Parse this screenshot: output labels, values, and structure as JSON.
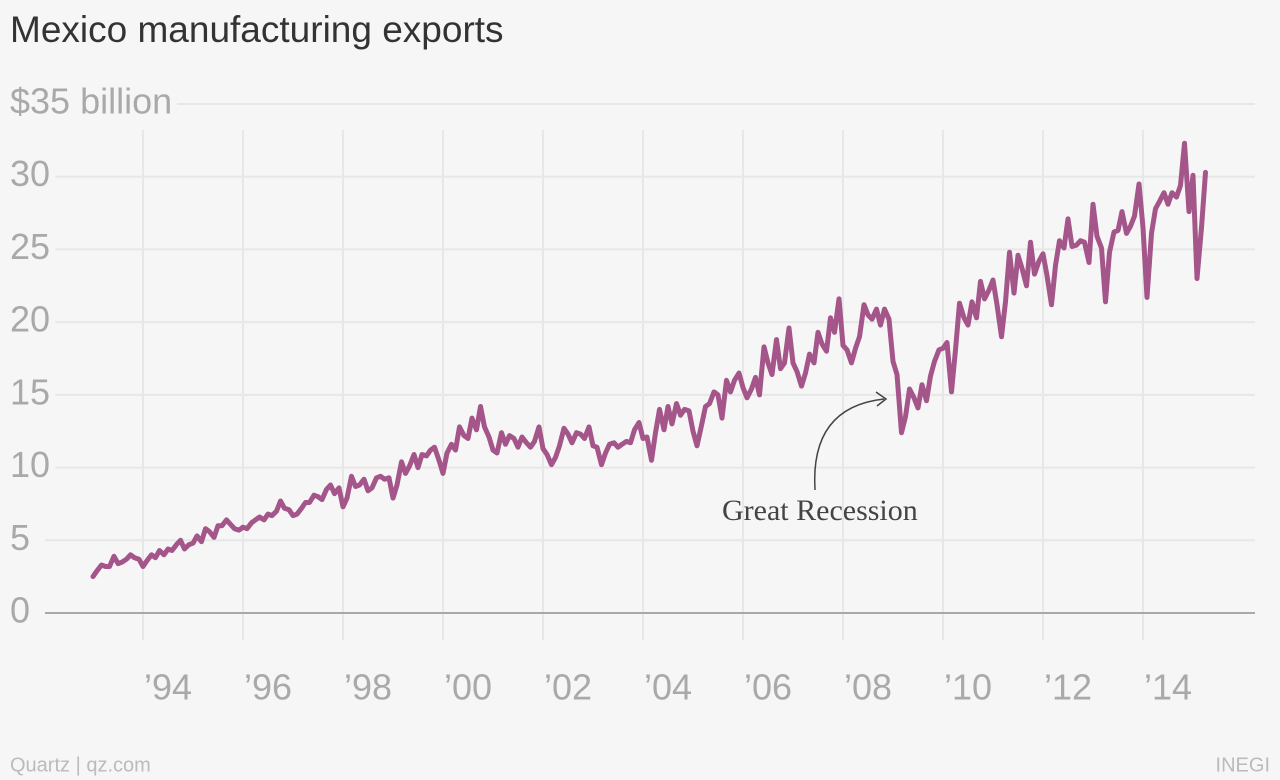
{
  "chart_data": {
    "type": "line",
    "title": "Mexico manufacturing exports",
    "annotation": "Great Recession",
    "source_left": "Quartz | qz.com",
    "source_right": "INEGI",
    "grid": true,
    "xlim": [
      1992.04,
      2016.24
    ],
    "ylim": [
      0,
      35
    ],
    "yticks": [
      0,
      5,
      10,
      15,
      20,
      25,
      30,
      {
        "value": 35,
        "label": "$35 billion"
      }
    ],
    "xticks": [
      {
        "value": 1994,
        "label": "’94"
      },
      {
        "value": 1996,
        "label": "’96"
      },
      {
        "value": 1998,
        "label": "’98"
      },
      {
        "value": 2000,
        "label": "’00"
      },
      {
        "value": 2002,
        "label": "’02"
      },
      {
        "value": 2004,
        "label": "’04"
      },
      {
        "value": 2006,
        "label": "’06"
      },
      {
        "value": 2008,
        "label": "’08"
      },
      {
        "value": 2010,
        "label": "’10"
      },
      {
        "value": 2012,
        "label": "’12"
      },
      {
        "value": 2014,
        "label": "’14"
      }
    ],
    "x": [
      1993,
      1993.08,
      1993.17,
      1993.25,
      1993.33,
      1993.42,
      1993.5,
      1993.58,
      1993.67,
      1993.75,
      1993.83,
      1993.92,
      1994,
      1994.08,
      1994.17,
      1994.25,
      1994.33,
      1994.42,
      1994.5,
      1994.58,
      1994.67,
      1994.75,
      1994.83,
      1994.92,
      1995,
      1995.08,
      1995.17,
      1995.25,
      1995.33,
      1995.42,
      1995.5,
      1995.58,
      1995.67,
      1995.75,
      1995.83,
      1995.92,
      1996,
      1996.08,
      1996.17,
      1996.25,
      1996.33,
      1996.42,
      1996.5,
      1996.58,
      1996.67,
      1996.75,
      1996.83,
      1996.92,
      1997,
      1997.08,
      1997.17,
      1997.25,
      1997.33,
      1997.42,
      1997.5,
      1997.58,
      1997.67,
      1997.75,
      1997.83,
      1997.92,
      1998,
      1998.08,
      1998.17,
      1998.25,
      1998.33,
      1998.42,
      1998.5,
      1998.58,
      1998.67,
      1998.75,
      1998.83,
      1998.92,
      1999,
      1999.08,
      1999.17,
      1999.25,
      1999.33,
      1999.42,
      1999.5,
      1999.58,
      1999.67,
      1999.75,
      1999.83,
      1999.92,
      2000,
      2000.08,
      2000.17,
      2000.25,
      2000.33,
      2000.42,
      2000.5,
      2000.58,
      2000.67,
      2000.75,
      2000.83,
      2000.92,
      2001,
      2001.08,
      2001.17,
      2001.25,
      2001.33,
      2001.42,
      2001.5,
      2001.58,
      2001.67,
      2001.75,
      2001.83,
      2001.92,
      2002,
      2002.08,
      2002.17,
      2002.25,
      2002.33,
      2002.42,
      2002.5,
      2002.58,
      2002.67,
      2002.75,
      2002.83,
      2002.92,
      2003,
      2003.08,
      2003.17,
      2003.25,
      2003.33,
      2003.42,
      2003.5,
      2003.58,
      2003.67,
      2003.75,
      2003.83,
      2003.92,
      2004,
      2004.08,
      2004.17,
      2004.25,
      2004.33,
      2004.42,
      2004.5,
      2004.58,
      2004.67,
      2004.75,
      2004.83,
      2004.92,
      2005,
      2005.08,
      2005.17,
      2005.25,
      2005.33,
      2005.42,
      2005.5,
      2005.58,
      2005.67,
      2005.75,
      2005.83,
      2005.92,
      2006,
      2006.08,
      2006.17,
      2006.25,
      2006.33,
      2006.42,
      2006.5,
      2006.58,
      2006.67,
      2006.75,
      2006.83,
      2006.92,
      2007,
      2007.08,
      2007.17,
      2007.25,
      2007.33,
      2007.42,
      2007.5,
      2007.58,
      2007.67,
      2007.75,
      2007.83,
      2007.92,
      2008,
      2008.08,
      2008.17,
      2008.25,
      2008.33,
      2008.42,
      2008.5,
      2008.58,
      2008.67,
      2008.75,
      2008.83,
      2008.92,
      2009,
      2009.08,
      2009.17,
      2009.25,
      2009.33,
      2009.42,
      2009.5,
      2009.58,
      2009.67,
      2009.75,
      2009.83,
      2009.92,
      2010,
      2010.08,
      2010.17,
      2010.25,
      2010.33,
      2010.42,
      2010.5,
      2010.58,
      2010.67,
      2010.75,
      2010.83,
      2010.92,
      2011,
      2011.08,
      2011.17,
      2011.25,
      2011.33,
      2011.42,
      2011.5,
      2011.58,
      2011.67,
      2011.75,
      2011.83,
      2011.92,
      2012,
      2012.08,
      2012.17,
      2012.25,
      2012.33,
      2012.42,
      2012.5,
      2012.58,
      2012.67,
      2012.75,
      2012.83,
      2012.92,
      2013,
      2013.08,
      2013.17,
      2013.25,
      2013.33,
      2013.42,
      2013.5,
      2013.58,
      2013.67,
      2013.75,
      2013.83,
      2013.92,
      2014,
      2014.08,
      2014.17,
      2014.25,
      2014.33,
      2014.42,
      2014.5,
      2014.58,
      2014.67,
      2014.75,
      2014.83,
      2014.92,
      2015,
      2015.08,
      2015.17,
      2015.25
    ],
    "series": [
      {
        "color": "#a4568a",
        "values": [
          2.5,
          2.9,
          3.3,
          3.2,
          3.2,
          3.9,
          3.4,
          3.5,
          3.7,
          4.0,
          3.8,
          3.7,
          3.2,
          3.6,
          4.0,
          3.8,
          4.3,
          4.0,
          4.4,
          4.3,
          4.7,
          5.0,
          4.4,
          4.7,
          4.8,
          5.3,
          4.9,
          5.8,
          5.6,
          5.2,
          6.0,
          6.0,
          6.4,
          6.1,
          5.8,
          5.7,
          5.9,
          5.8,
          6.2,
          6.4,
          6.6,
          6.4,
          6.8,
          6.7,
          7.0,
          7.7,
          7.2,
          7.1,
          6.7,
          6.8,
          7.2,
          7.6,
          7.6,
          8.1,
          8.0,
          7.8,
          8.5,
          8.8,
          8.2,
          8.6,
          7.3,
          7.9,
          9.4,
          8.7,
          8.8,
          9.2,
          8.4,
          8.6,
          9.3,
          9.4,
          9.2,
          9.3,
          7.9,
          8.8,
          10.4,
          9.6,
          10.1,
          10.9,
          10.0,
          10.9,
          10.8,
          11.2,
          11.4,
          10.5,
          9.6,
          11.0,
          11.6,
          11.2,
          12.8,
          12.2,
          12.0,
          13.4,
          12.6,
          14.2,
          12.8,
          12.1,
          11.2,
          11.0,
          12.4,
          11.6,
          12.2,
          12.0,
          11.4,
          12.1,
          11.7,
          11.4,
          11.8,
          12.8,
          11.3,
          10.9,
          10.2,
          10.7,
          11.5,
          12.7,
          12.3,
          11.7,
          12.4,
          12.3,
          12.0,
          12.8,
          11.5,
          11.4,
          10.2,
          11.0,
          11.6,
          11.7,
          11.4,
          11.6,
          11.8,
          11.7,
          12.6,
          13.1,
          12.0,
          12.1,
          10.5,
          12.4,
          14.0,
          12.6,
          14.2,
          13.0,
          14.4,
          13.6,
          14.0,
          13.9,
          12.5,
          11.5,
          12.9,
          14.2,
          14.4,
          15.2,
          15.0,
          13.4,
          16.0,
          15.2,
          16.0,
          16.5,
          15.5,
          14.8,
          15.4,
          16.2,
          15.0,
          18.3,
          17.2,
          16.4,
          18.8,
          16.8,
          17.2,
          19.6,
          17.2,
          16.6,
          15.6,
          16.5,
          17.8,
          17.2,
          19.3,
          18.5,
          18.0,
          20.3,
          19.3,
          21.6,
          18.4,
          18.1,
          17.2,
          18.2,
          19.0,
          21.2,
          20.5,
          20.2,
          20.9,
          19.8,
          20.9,
          20.2,
          17.3,
          16.4,
          12.4,
          13.5,
          15.4,
          14.8,
          14.1,
          15.7,
          14.6,
          16.3,
          17.3,
          18.1,
          18.2,
          18.6,
          15.2,
          18.1,
          21.3,
          20.3,
          19.8,
          21.4,
          20.3,
          22.8,
          21.6,
          22.2,
          22.9,
          21.2,
          19.0,
          21.4,
          24.8,
          22.0,
          24.6,
          23.7,
          22.5,
          25.5,
          23.3,
          24.2,
          24.7,
          23.2,
          21.2,
          23.9,
          25.6,
          25.1,
          27.1,
          25.2,
          25.3,
          25.6,
          25.5,
          24.1,
          28.1,
          25.9,
          25.1,
          21.4,
          24.8,
          26.2,
          26.3,
          27.6,
          26.1,
          26.6,
          27.3,
          29.5,
          26.5,
          21.7,
          26.1,
          27.8,
          28.3,
          28.9,
          28.1,
          28.9,
          28.6,
          29.4,
          32.3,
          27.6,
          30.1,
          23.0,
          26.5,
          30.3
        ]
      }
    ]
  }
}
